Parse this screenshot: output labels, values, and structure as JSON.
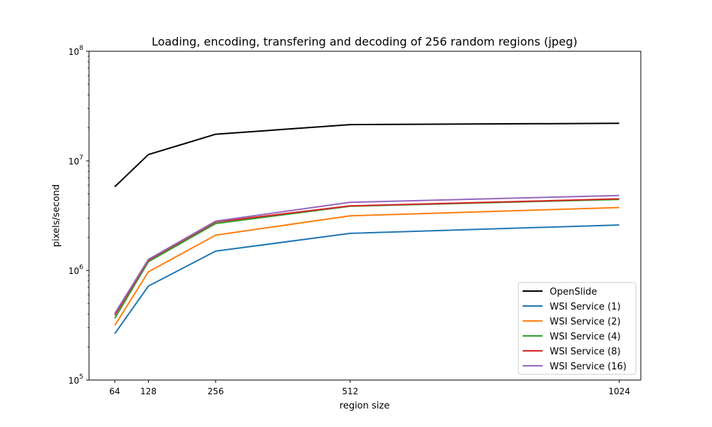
{
  "chart_data": {
    "type": "line",
    "title": "Loading, encoding, transfering and decoding of 256 random regions (jpeg)",
    "xlabel": "region size",
    "ylabel": "pixels/second",
    "x": [
      64,
      128,
      256,
      512,
      1024
    ],
    "x_ticks": [
      "64",
      "128",
      "256",
      "512",
      "1024"
    ],
    "xlim": [
      15,
      1065
    ],
    "y_scale": "log",
    "ylim": [
      100000,
      100000000
    ],
    "y_ticks": [
      {
        "value": 100000,
        "base": "10",
        "exp": "5"
      },
      {
        "value": 1000000,
        "base": "10",
        "exp": "6"
      },
      {
        "value": 10000000,
        "base": "10",
        "exp": "7"
      },
      {
        "value": 100000000,
        "base": "10",
        "exp": "8"
      }
    ],
    "grid": false,
    "legend_position": "lower-right",
    "series": [
      {
        "name": "OpenSlide",
        "color": "#000000",
        "values": [
          5800000,
          11400000,
          17500000,
          21400000,
          22000000
        ]
      },
      {
        "name": "WSI Service (1)",
        "color": "#1f77b4",
        "values": [
          265000,
          720000,
          1500000,
          2180000,
          2600000
        ]
      },
      {
        "name": "WSI Service (2)",
        "color": "#ff7f0e",
        "values": [
          315000,
          970000,
          2100000,
          3150000,
          3750000
        ]
      },
      {
        "name": "WSI Service (4)",
        "color": "#2ca02c",
        "values": [
          365000,
          1200000,
          2680000,
          3850000,
          4450000
        ]
      },
      {
        "name": "WSI Service (8)",
        "color": "#d62728",
        "values": [
          390000,
          1240000,
          2770000,
          3880000,
          4500000
        ]
      },
      {
        "name": "WSI Service (16)",
        "color": "#9467bd",
        "values": [
          405000,
          1260000,
          2820000,
          4180000,
          4830000
        ]
      }
    ]
  }
}
